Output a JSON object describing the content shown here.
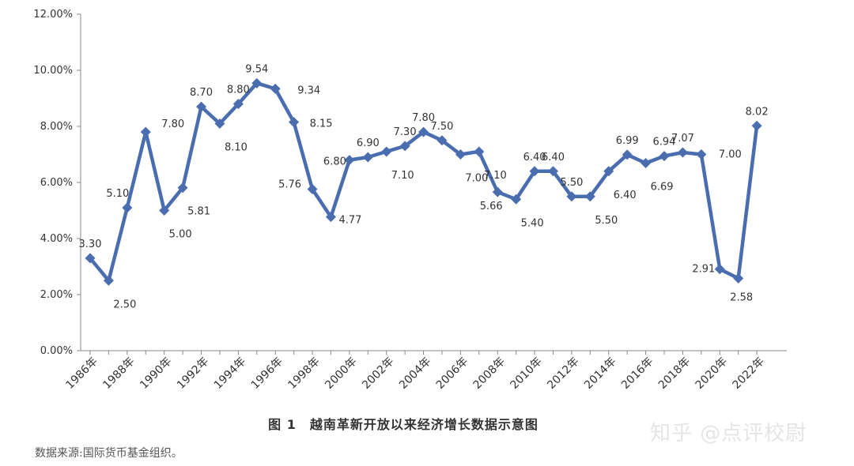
{
  "chart_data": {
    "type": "line",
    "title": "",
    "xlabel": "",
    "ylabel": "",
    "ylim": [
      0,
      12
    ],
    "y_ticks": [
      "0.00%",
      "2.00%",
      "4.00%",
      "6.00%",
      "8.00%",
      "10.00%",
      "12.00%"
    ],
    "x_ticks": [
      "1986年",
      "1988年",
      "1990年",
      "1992年",
      "1994年",
      "1996年",
      "1998年",
      "2000年",
      "2002年",
      "2004年",
      "2006年",
      "2008年",
      "2010年",
      "2012年",
      "2014年",
      "2016年",
      "2018年",
      "2020年",
      "2022年"
    ],
    "x": [
      1986,
      1987,
      1988,
      1989,
      1990,
      1991,
      1992,
      1993,
      1994,
      1995,
      1996,
      1997,
      1998,
      1999,
      2000,
      2001,
      2002,
      2003,
      2004,
      2005,
      2006,
      2007,
      2008,
      2009,
      2010,
      2011,
      2012,
      2013,
      2014,
      2015,
      2016,
      2017,
      2018,
      2019,
      2020,
      2021,
      2022
    ],
    "series": [
      {
        "values": [
          3.3,
          2.5,
          5.1,
          7.8,
          5.0,
          5.81,
          8.7,
          8.1,
          8.8,
          9.54,
          9.34,
          8.15,
          5.76,
          4.77,
          6.8,
          6.9,
          7.1,
          7.3,
          7.8,
          7.5,
          7.0,
          7.1,
          5.66,
          5.4,
          6.4,
          6.4,
          5.5,
          5.5,
          6.4,
          6.99,
          6.69,
          6.94,
          7.07,
          7.0,
          2.91,
          2.58,
          8.02
        ],
        "labels": [
          "3.30",
          "2.50",
          "5.10",
          "7.80",
          "5.00",
          "5.81",
          "8.70",
          "8.10",
          "8.80",
          "9.54",
          "9.34",
          "8.15",
          "5.76",
          "4.77",
          "6.80",
          "6.90",
          "7.10",
          "7.30",
          "7.80",
          "7.50",
          "7.00",
          "7.10",
          "5.66",
          "5.40",
          "6.40",
          "6.40",
          "5.50",
          "5.50",
          "6.40",
          "6.99",
          "6.69",
          "6.94",
          "7.07",
          "7.00",
          "2.91",
          "2.58",
          "8.02"
        ]
      }
    ],
    "line_color": "#4a6db0",
    "grid": false,
    "legend": "none"
  },
  "caption": "图 1　越南革新开放以来经济增长数据示意图",
  "source": "数据来源:国际货币基金组织。",
  "watermark": "知乎 @点评校尉"
}
